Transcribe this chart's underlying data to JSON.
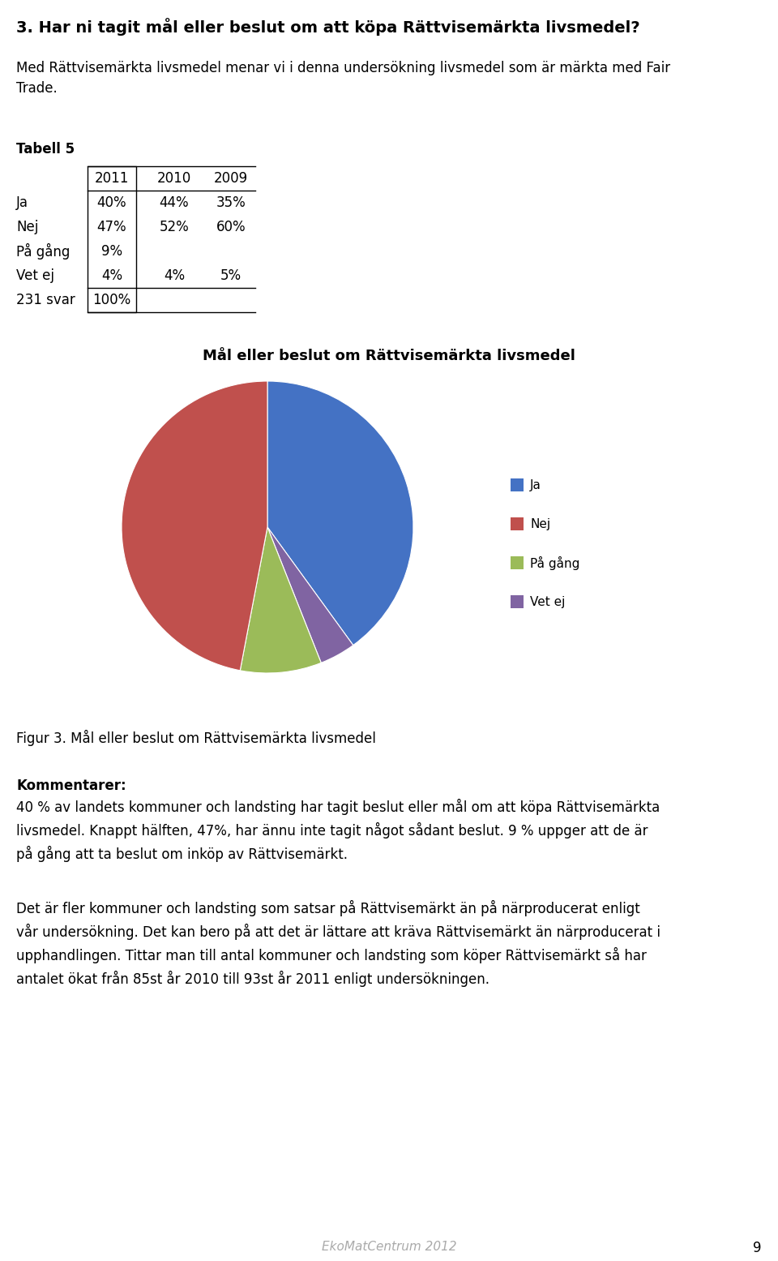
{
  "page_title": "3. Har ni tagit mål eller beslut om att köpa Rättvisemärkta livsmedel?",
  "subtitle": "Med Rättvisemärkta livsmedel menar vi i denna undersökning livsmedel som är märkta med Fair\nTrade.",
  "tabell_label": "Tabell 5",
  "table_headers": [
    "",
    "2011",
    "2010",
    "2009"
  ],
  "table_rows": [
    [
      "Ja",
      "40%",
      "44%",
      "35%"
    ],
    [
      "Nej",
      "47%",
      "52%",
      "60%"
    ],
    [
      "På gång",
      "9%",
      "",
      ""
    ],
    [
      "Vet ej",
      "4%",
      "4%",
      "5%"
    ],
    [
      "231 svar",
      "100%",
      "",
      ""
    ]
  ],
  "pie_values": [
    40,
    47,
    9,
    4
  ],
  "pie_labels": [
    "Ja",
    "Nej",
    "På gång",
    "Vet ej"
  ],
  "pie_colors": [
    "#4472C4",
    "#C0504D",
    "#9BBB59",
    "#8064A2"
  ],
  "pie_title": "Mål eller beslut om Rättvisemärkta livsmedel",
  "figur_caption": "Figur 3. Mål eller beslut om Rättvisemärkta livsmedel",
  "kommentar_title": "Kommentarer:",
  "kommentar_text": "40 % av landets kommuner och landsting har tagit beslut eller mål om att köpa Rättvisemärkta\nlivsmedel. Knappt hälften, 47%, har ännu inte tagit något sådant beslut. 9 % uppger att de är\npå gång att ta beslut om inköp av Rättvisemärkt.",
  "paragraph2": "Det är fler kommuner och landsting som satsar på Rättvisemärkt än på närproducerat enligt\nvår undersökning. Det kan bero på att det är lättare att kräva Rättvisemärkt än närproducerat i\nupphandlingen. Tittar man till antal kommuner och landsting som köper Rättvisemärkt så har\nantalet ökat från 85st år 2010 till 93st år 2011 enligt undersökningen.",
  "footer_text": "EkoMatCentrum 2012",
  "page_number": "9",
  "background_color": "#FFFFFF",
  "text_color": "#000000"
}
